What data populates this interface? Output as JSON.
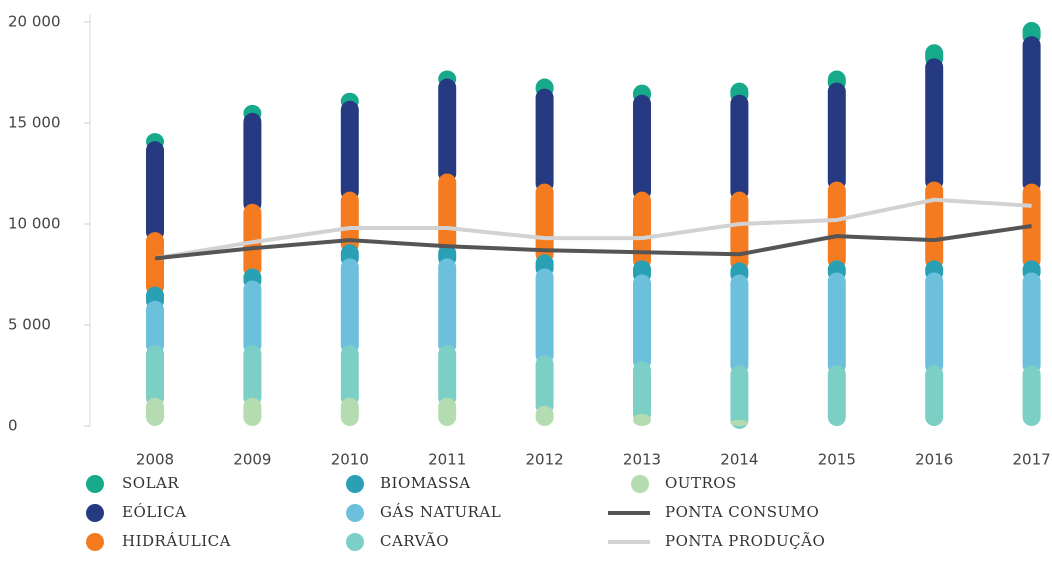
{
  "chart_data": {
    "type": "stacked_bar_line",
    "categories": [
      "2008",
      "2009",
      "2010",
      "2011",
      "2012",
      "2013",
      "2014",
      "2015",
      "2016",
      "2017"
    ],
    "series": [
      {
        "name": "SOLAR",
        "color": "#16a98a",
        "values": [
          400,
          400,
          400,
          400,
          500,
          500,
          600,
          600,
          700,
          700
        ]
      },
      {
        "name": "EÓLICA",
        "color": "#263a82",
        "values": [
          4500,
          4500,
          4500,
          4700,
          4700,
          4800,
          4800,
          4900,
          6100,
          7300
        ]
      },
      {
        "name": "HIDRÁULICA",
        "color": "#f47b20",
        "values": [
          2700,
          3200,
          2600,
          3500,
          3500,
          3400,
          3500,
          3900,
          3900,
          3800
        ]
      },
      {
        "name": "BIOMASSA",
        "color": "#2aa0b5",
        "values": [
          700,
          600,
          700,
          700,
          700,
          700,
          600,
          600,
          600,
          600
        ]
      },
      {
        "name": "GÁS NATURAL",
        "color": "#6cc0dc",
        "values": [
          2200,
          3200,
          4300,
          4300,
          4300,
          4300,
          4500,
          4600,
          4600,
          4600
        ]
      },
      {
        "name": "CARVÃO",
        "color": "#7ccfc4",
        "values": [
          2600,
          2600,
          2600,
          2600,
          2500,
          2600,
          2700,
          3000,
          3000,
          3000
        ]
      },
      {
        "name": "OUTROS",
        "color": "#b5dcb0",
        "values": [
          1400,
          1400,
          1400,
          1400,
          1000,
          600,
          300,
          0,
          0,
          0
        ]
      }
    ],
    "line_series": [
      {
        "name": "PONTA CONSUMO",
        "color": "#555555",
        "values": [
          8300,
          8800,
          9200,
          8900,
          8700,
          8600,
          8500,
          9400,
          9200,
          9900
        ]
      },
      {
        "name": "PONTA PRODUÇÃO",
        "color": "#d2d2d2",
        "values": [
          8300,
          9100,
          9800,
          9800,
          9300,
          9300,
          10000,
          10200,
          11200,
          10900
        ]
      }
    ],
    "ylim": [
      0,
      20000
    ],
    "yticks": [
      0,
      {
        "value": 5000,
        "label": "5 000"
      },
      {
        "value": 10000,
        "label": "10 000"
      },
      {
        "value": 15000,
        "label": "15 000"
      },
      {
        "value": 20000,
        "label": "20 000"
      }
    ]
  }
}
